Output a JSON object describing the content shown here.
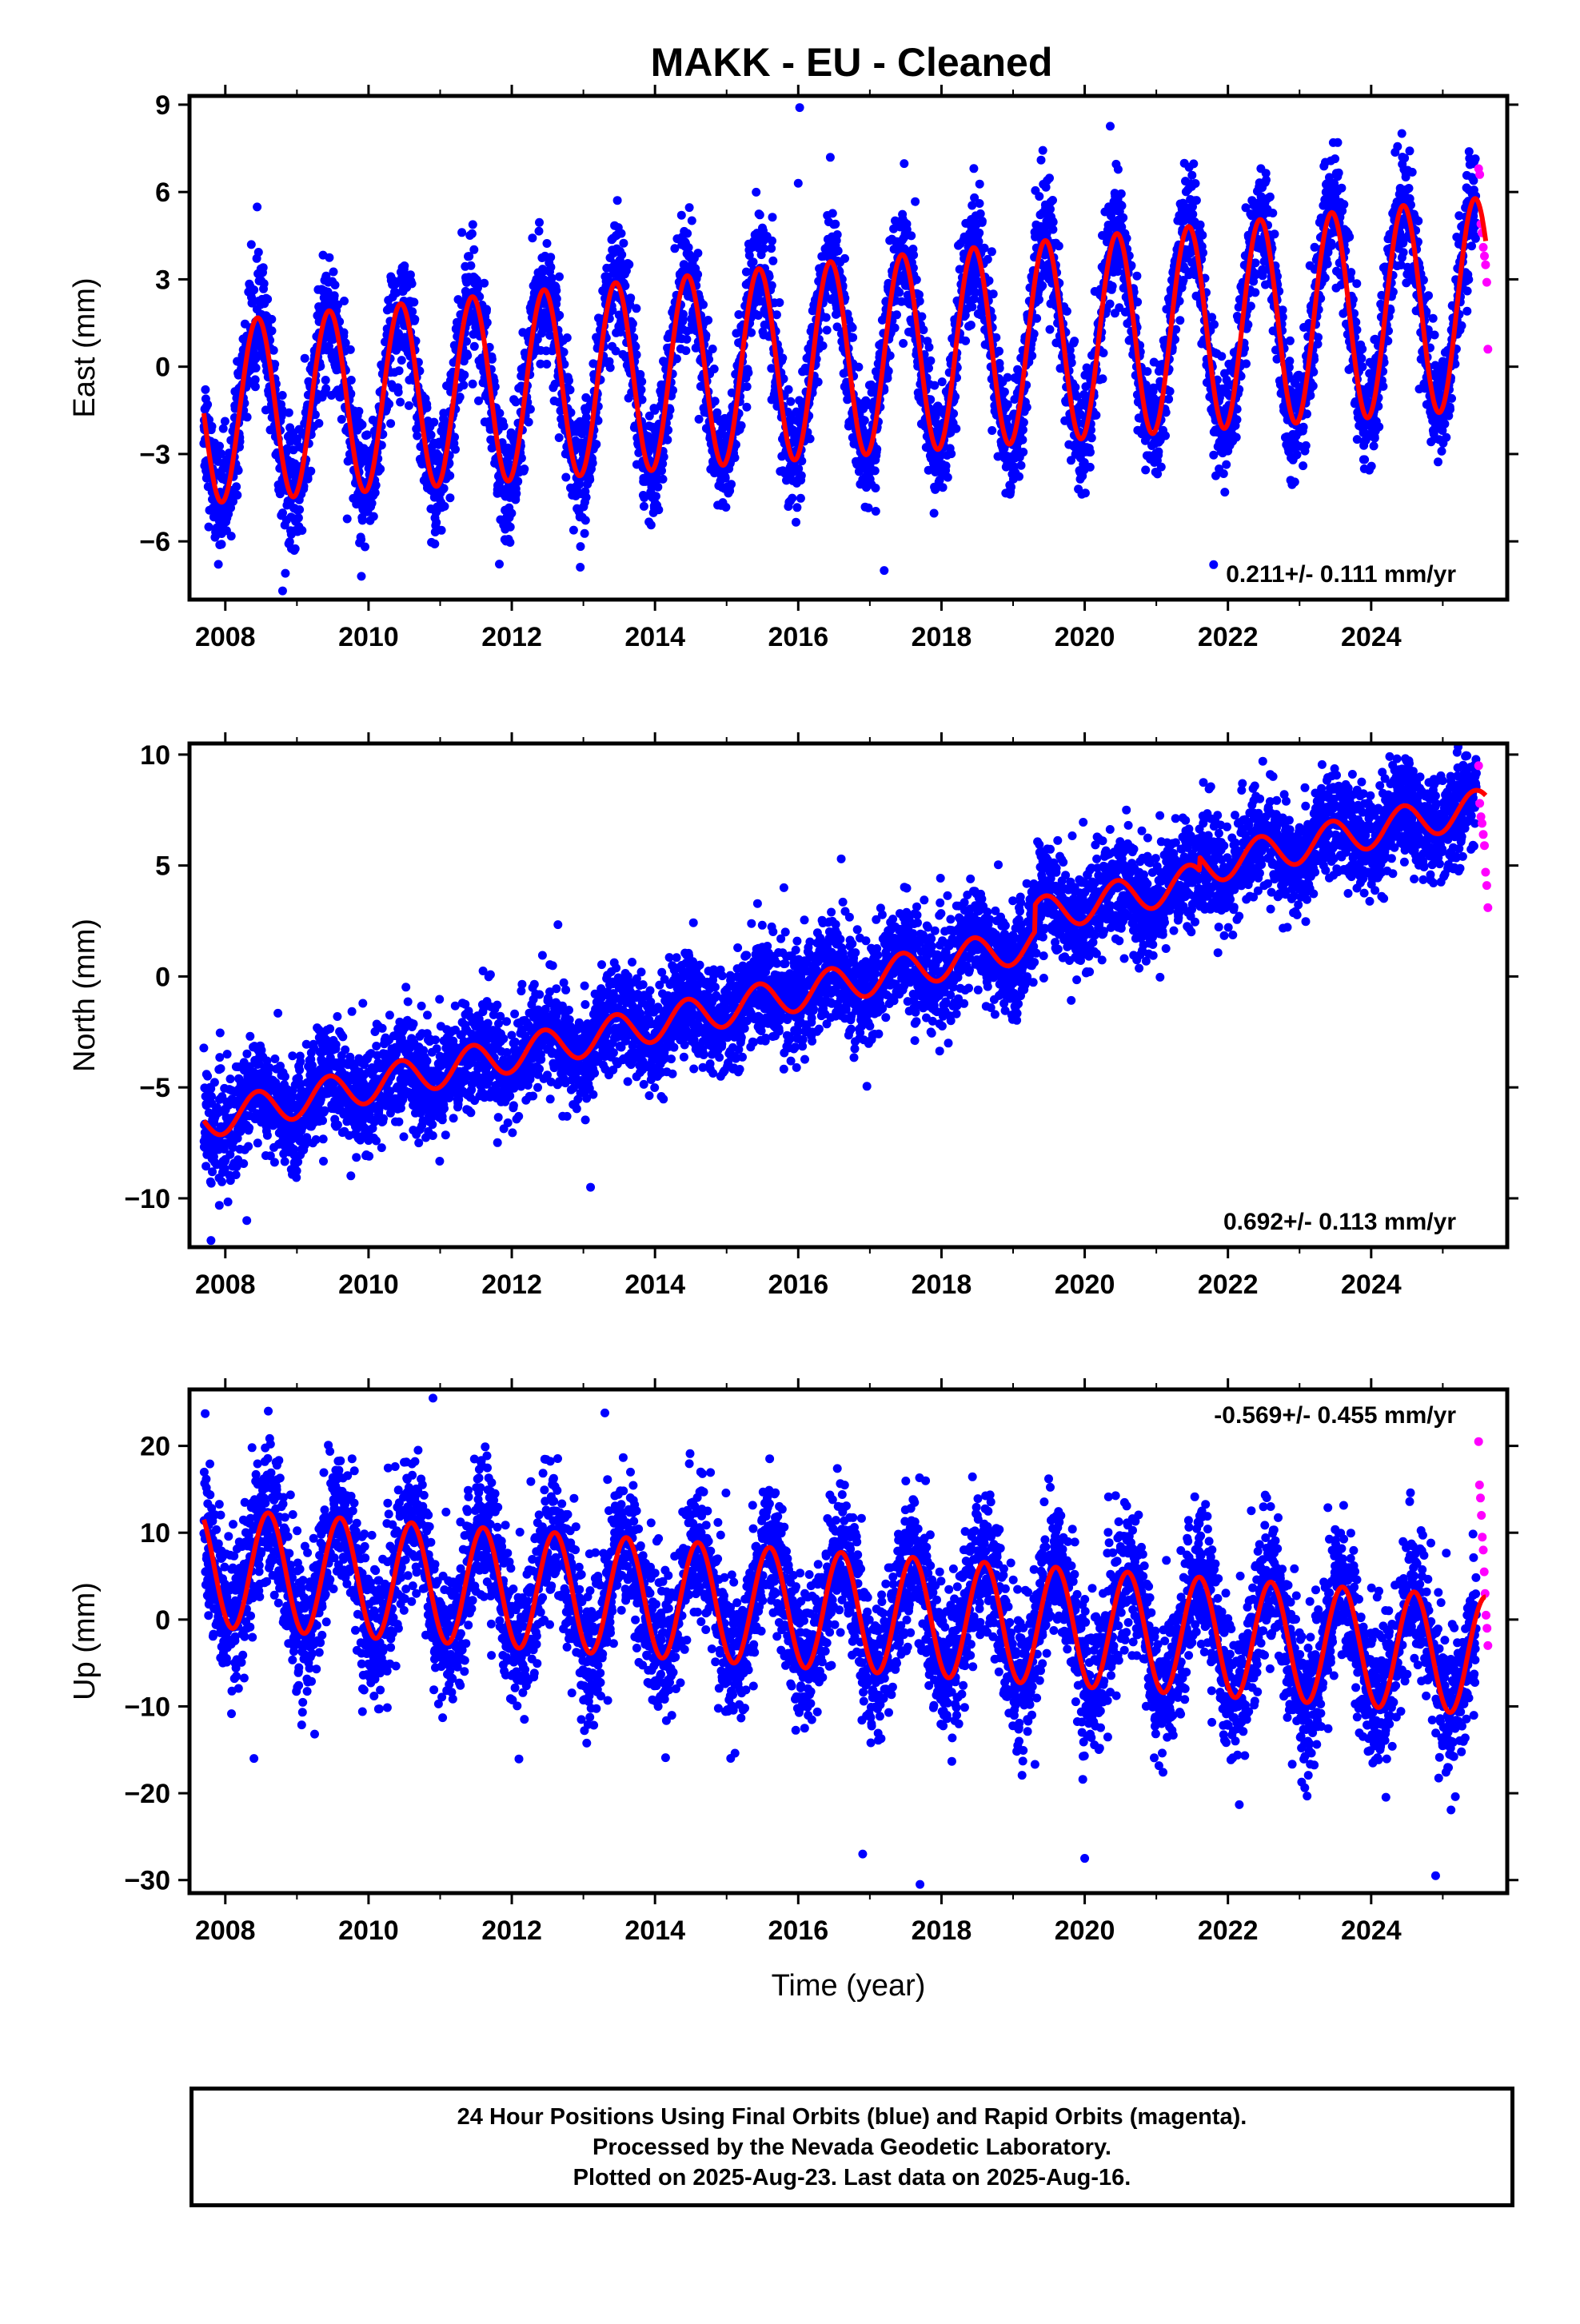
{
  "title": "MAKK  - EU - Cleaned",
  "caption": {
    "line1": "24 Hour Positions Using Final Orbits (blue) and Rapid Orbits (magenta).",
    "line2": "Processed by the Nevada Geodetic Laboratory.",
    "line3": "Plotted on 2025-Aug-23. Last data on 2025-Aug-16."
  },
  "colors": {
    "final_orbits": "#0000ff",
    "rapid_orbits": "#ff00ff",
    "model_fit": "#ff0000",
    "frame": "#000000"
  },
  "chart_data": [
    {
      "type": "scatter",
      "component": "east",
      "ylabel": "East (mm)",
      "xlabel": "",
      "xlim": [
        2007.5,
        2025.9
      ],
      "ylim": [
        -8,
        9.3
      ],
      "xticks": [
        2008,
        2010,
        2012,
        2014,
        2016,
        2018,
        2020,
        2022,
        2024
      ],
      "yticks": [
        -6,
        -3,
        0,
        3,
        6,
        9
      ],
      "yticklabels": [
        "−6",
        "−3",
        "0",
        "3",
        "6",
        "9"
      ],
      "rate_label": "0.211+/- 0.111 mm/yr",
      "rate_position": "bottom-right",
      "model": {
        "start": 2007.7,
        "end": 2025.6,
        "offset_at_start": -1.6,
        "trend_per_year": 0.211,
        "annual_amplitude": 3.1,
        "amplitude_change_per_year": 0.03,
        "peak_fraction_of_year": 0.45
      },
      "final_orbits": {
        "start": 2007.7,
        "end": 2025.47,
        "scatter": 1.0
      },
      "rapid_orbits": {
        "start": 2025.5,
        "end": 2025.63,
        "values": [
          6.8,
          6.6,
          4.9,
          4.6,
          4.1,
          3.8,
          3.5,
          2.9,
          0.6
        ]
      },
      "outliers": [
        [
          2016.02,
          8.9
        ],
        [
          2008.8,
          -7.7
        ],
        [
          2016.0,
          6.3
        ],
        [
          2009.9,
          -7.2
        ],
        [
          2021.8,
          -6.8
        ],
        [
          2017.2,
          -7.0
        ]
      ]
    },
    {
      "type": "scatter",
      "component": "north",
      "ylabel": "North (mm)",
      "xlabel": "",
      "xlim": [
        2007.5,
        2025.9
      ],
      "ylim": [
        -12.2,
        10.5
      ],
      "xticks": [
        2008,
        2010,
        2012,
        2014,
        2016,
        2018,
        2020,
        2022,
        2024
      ],
      "yticks": [
        -10,
        -5,
        0,
        5,
        10
      ],
      "yticklabels": [
        "−10",
        "−5",
        "0",
        "5",
        "10"
      ],
      "rate_label": "0.692+/- 0.113 mm/yr",
      "rate_position": "bottom-right",
      "model": {
        "start": 2007.7,
        "end": 2025.6,
        "offset_at_start": -6.5,
        "trend_per_year": 0.692,
        "annual_amplitude": 0.8,
        "amplitude_change_per_year": 0.0,
        "peak_fraction_of_year": 0.45,
        "steps": [
          [
            2019.3,
            1.2
          ],
          [
            2021.6,
            0.6
          ]
        ]
      },
      "final_orbits": {
        "start": 2007.7,
        "end": 2025.47,
        "scatter": 1.2
      },
      "rapid_orbits": {
        "start": 2025.5,
        "end": 2025.63,
        "values": [
          9.5,
          7.8,
          7.2,
          6.9,
          6.4,
          5.9,
          4.7,
          4.1,
          3.1
        ]
      },
      "outliers": [
        [
          2007.8,
          -11.9
        ],
        [
          2025.2,
          10.1
        ],
        [
          2008.3,
          -11.0
        ],
        [
          2013.1,
          -9.5
        ],
        [
          2015.8,
          4.0
        ],
        [
          2016.6,
          5.3
        ]
      ]
    },
    {
      "type": "scatter",
      "component": "up",
      "ylabel": "Up (mm)",
      "xlabel": "Time (year)",
      "xlim": [
        2007.5,
        2025.9
      ],
      "ylim": [
        -31.5,
        26.5
      ],
      "xticks": [
        2008,
        2010,
        2012,
        2014,
        2016,
        2018,
        2020,
        2022,
        2024
      ],
      "yticks": [
        -30,
        -20,
        -10,
        0,
        10,
        20
      ],
      "yticklabels": [
        "−30",
        "−20",
        "−10",
        "0",
        "10",
        "20"
      ],
      "rate_label": "-0.569+/- 0.455 mm/yr",
      "rate_position": "top-right",
      "model": {
        "start": 2007.7,
        "end": 2025.6,
        "offset_at_start": 6.0,
        "trend_per_year": -0.569,
        "annual_amplitude": 6.8,
        "amplitude_change_per_year": 0.0,
        "peak_fraction_of_year": 0.6
      },
      "final_orbits": {
        "start": 2007.7,
        "end": 2025.47,
        "scatter": 4.2
      },
      "rapid_orbits": {
        "start": 2025.5,
        "end": 2025.63,
        "values": [
          20.5,
          15.5,
          14.0,
          12.0,
          9.5,
          8.0,
          5.5,
          3.0,
          0.5,
          -1.0,
          -3.0
        ]
      },
      "outliers": [
        [
          2010.9,
          25.5
        ],
        [
          2013.3,
          23.8
        ],
        [
          2008.6,
          24.0
        ],
        [
          2017.7,
          -30.5
        ],
        [
          2016.9,
          -27.0
        ],
        [
          2020.0,
          -27.5
        ],
        [
          2024.9,
          -29.5
        ],
        [
          2008.4,
          -16.0
        ]
      ]
    }
  ]
}
